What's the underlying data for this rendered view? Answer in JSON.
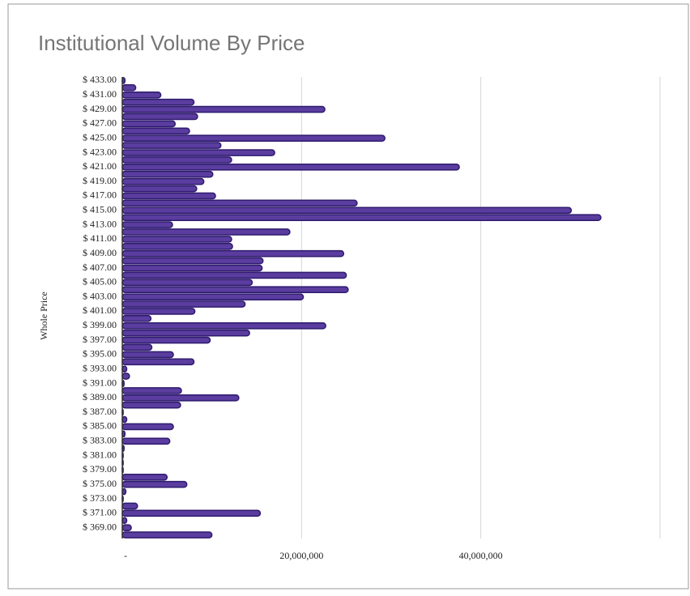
{
  "chart_data": {
    "type": "bar",
    "orientation": "horizontal",
    "title": "Institutional Volume By Price",
    "y_label": "Whole Price",
    "categories": [
      "$ 433.00",
      null,
      "$ 431.00",
      null,
      "$ 429.00",
      null,
      "$ 427.00",
      null,
      "$ 425.00",
      null,
      "$ 423.00",
      null,
      "$ 421.00",
      null,
      "$ 419.00",
      null,
      "$ 417.00",
      null,
      "$ 415.00",
      null,
      "$ 413.00",
      null,
      "$ 411.00",
      null,
      "$ 409.00",
      null,
      "$ 407.00",
      null,
      "$ 405.00",
      null,
      "$ 403.00",
      null,
      "$ 401.00",
      null,
      "$ 399.00",
      null,
      "$ 397.00",
      null,
      "$ 395.00",
      null,
      "$ 393.00",
      null,
      "$ 391.00",
      null,
      "$ 389.00",
      null,
      "$ 387.00",
      null,
      "$ 385.00",
      null,
      "$ 383.00",
      null,
      "$ 381.00",
      null,
      "$ 379.00",
      null,
      "$ 375.00",
      null,
      "$ 373.00",
      null,
      "$ 371.00",
      null,
      "$ 369.00",
      null
    ],
    "values": [
      300000,
      1500000,
      4300000,
      8000000,
      22600000,
      8400000,
      5900000,
      7500000,
      29300000,
      11000000,
      17000000,
      12200000,
      37600000,
      10100000,
      9100000,
      8300000,
      10400000,
      26200000,
      50100000,
      53400000,
      5600000,
      18700000,
      12200000,
      12300000,
      24700000,
      15700000,
      15600000,
      25000000,
      14500000,
      25200000,
      20200000,
      13700000,
      8100000,
      3200000,
      22700000,
      14200000,
      9800000,
      3300000,
      5700000,
      8000000,
      500000,
      800000,
      200000,
      6600000,
      13000000,
      6500000,
      100000,
      500000,
      5700000,
      300000,
      5300000,
      200000,
      100000,
      100000,
      100000,
      5000000,
      7200000,
      400000,
      100000,
      1700000,
      15400000,
      500000,
      1000000,
      10000000
    ],
    "color": "#5a3d9e",
    "edge_color": "#2f1b6e",
    "xlim": [
      0,
      60000000
    ],
    "xticks": [
      {
        "value": 0,
        "label": "-"
      },
      {
        "value": 20000000,
        "label": "20,000,000"
      },
      {
        "value": 40000000,
        "label": "40,000,000"
      }
    ],
    "grid": true
  }
}
